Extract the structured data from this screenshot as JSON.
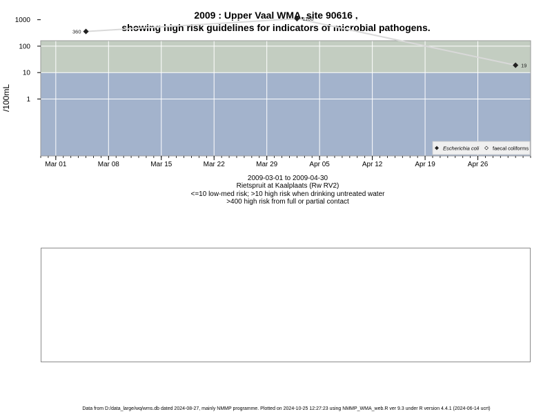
{
  "title_line1": "2009 : Upper Vaal WMA, site 90616 ,",
  "title_line2": "showing high risk guidelines for indicators of microbial pathogens.",
  "subtitle": {
    "date_range": "2009-03-01 to 2009-04-30",
    "site": "Rietspruit at Kaalplaats (Rw RV2)",
    "risk_note1": "<=10 low-med risk; >10 high risk when drinking untreated water",
    "risk_note2": ">400 high risk from full or partial contact"
  },
  "footer": "Data from D:/data_large/wq/wms.db dated 2024-08-27, mainly NMMP programme. Plotted on 2024-10-25 12:27:23 using NMMP_WMA_web.R ver 9.3 under R version 4.4.1 (2024-06-14 ucrt)",
  "colors": {
    "band_low": "#a3b3cc",
    "band_mid": "#c3cdc1",
    "band_high": "#fdf7cc",
    "line": "#d9d9d9",
    "grid": "#ffffff"
  },
  "chart_data": {
    "type": "line",
    "ylabel": "/100mL",
    "y_scale": "log10",
    "yticks": [
      "1",
      "10",
      "100",
      "1000"
    ],
    "yticks_values": [
      1,
      10,
      100,
      1000
    ],
    "x_range": [
      "2009-02-27",
      "2009-05-03"
    ],
    "xticks": [
      {
        "date": "2009-03-01",
        "label": "Mar 01"
      },
      {
        "date": "2009-03-08",
        "label": "Mar 08"
      },
      {
        "date": "2009-03-15",
        "label": "Mar 15"
      },
      {
        "date": "2009-03-22",
        "label": "Mar 22"
      },
      {
        "date": "2009-03-29",
        "label": "Mar 29"
      },
      {
        "date": "2009-04-05",
        "label": "Apr 05"
      },
      {
        "date": "2009-04-12",
        "label": "Apr 12"
      },
      {
        "date": "2009-04-19",
        "label": "Apr 19"
      },
      {
        "date": "2009-04-26",
        "label": "Apr 26"
      }
    ],
    "risk_bands": [
      {
        "from": 0,
        "to": 10,
        "color": "#a3b3cc"
      },
      {
        "from": 10,
        "to": 400,
        "color": "#c3cdc1"
      },
      {
        "from": 400,
        "to": 2200,
        "color": "#fdf7cc"
      }
    ],
    "series": [
      {
        "name": "Escherichia coli",
        "marker": "filled-diamond",
        "points": [
          {
            "x": "2009-03-05",
            "y": 360,
            "label": "360"
          },
          {
            "x": "2009-04-02",
            "y": 1100,
            "label": "1100"
          },
          {
            "x": "2009-05-01",
            "y": 19,
            "label": "19"
          }
        ]
      },
      {
        "name": "faecal coliforms",
        "marker": "open-diamond",
        "points": []
      }
    ],
    "legend_position": "bottom-right"
  }
}
